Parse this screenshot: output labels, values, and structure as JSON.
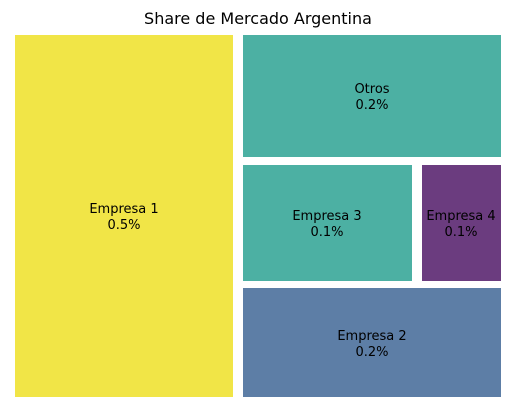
{
  "chart_data": {
    "type": "treemap",
    "title": "Share de Mercado Argentina",
    "items": [
      {
        "name": "Empresa 1",
        "value_label": "0.5%",
        "value": 0.5,
        "color": "#f1e547"
      },
      {
        "name": "Otros",
        "value_label": "0.2%",
        "value": 0.2,
        "color": "#4cb0a3"
      },
      {
        "name": "Empresa 3",
        "value_label": "0.1%",
        "value": 0.1,
        "color": "#4cb0a3"
      },
      {
        "name": "Empresa 4",
        "value_label": "0.1%",
        "value": 0.1,
        "color": "#6b3c7f"
      },
      {
        "name": "Empresa 2",
        "value_label": "0.2%",
        "value": 0.2,
        "color": "#5d7ea6"
      }
    ]
  }
}
